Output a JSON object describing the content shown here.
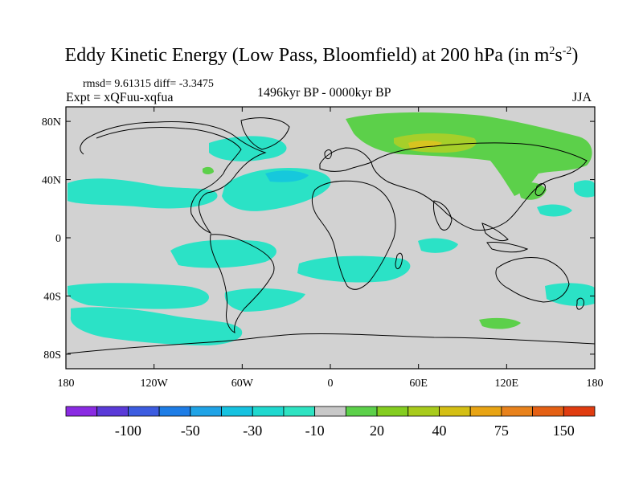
{
  "title": {
    "main": "Eddy Kinetic Energy (Low Pass, Bloomfield) at 200 hPa (in m",
    "sup1": "2",
    "mid": "s",
    "sup2": "-2",
    "close": ")"
  },
  "stats": "rmsd= 9.61315 diff= -3.3475",
  "experiment": "Expt = xQFuu-xqfua",
  "period": "1496kyr BP - 0000kyr BP",
  "season": "JJA",
  "axes": {
    "lat_labels": [
      "80N",
      "40N",
      "0",
      "40S",
      "80S"
    ],
    "lat_values": [
      80,
      40,
      0,
      -40,
      -80
    ],
    "lon_labels": [
      "180",
      "120W",
      "60W",
      "0",
      "60E",
      "120E",
      "180"
    ],
    "lon_values": [
      -180,
      -120,
      -60,
      0,
      60,
      120,
      180
    ],
    "lat_range": [
      -90,
      90
    ],
    "lon_range": [
      -180,
      180
    ]
  },
  "colorbar": {
    "colors": [
      "#8a2be2",
      "#5a3ad8",
      "#3c5ce0",
      "#1e7de6",
      "#1fa3e6",
      "#16c2e0",
      "#1fd8cf",
      "#2ee3c2",
      "#c8c8c8",
      "#5cd04a",
      "#84cd20",
      "#a8cb1c",
      "#d4bf14",
      "#e8a414",
      "#e8821c",
      "#e46014",
      "#e03c10"
    ],
    "labels": [
      "-100",
      "-50",
      "-30",
      "-10",
      "20",
      "40",
      "75",
      "150"
    ]
  },
  "field_colors": {
    "neutral": "#d2d2d2",
    "neg_light": "#2be2c6",
    "neg_mid": "#16c8dc",
    "pos_green": "#5cd04a",
    "pos_lime": "#a6cf2a",
    "pos_yellow": "#d8c420"
  }
}
